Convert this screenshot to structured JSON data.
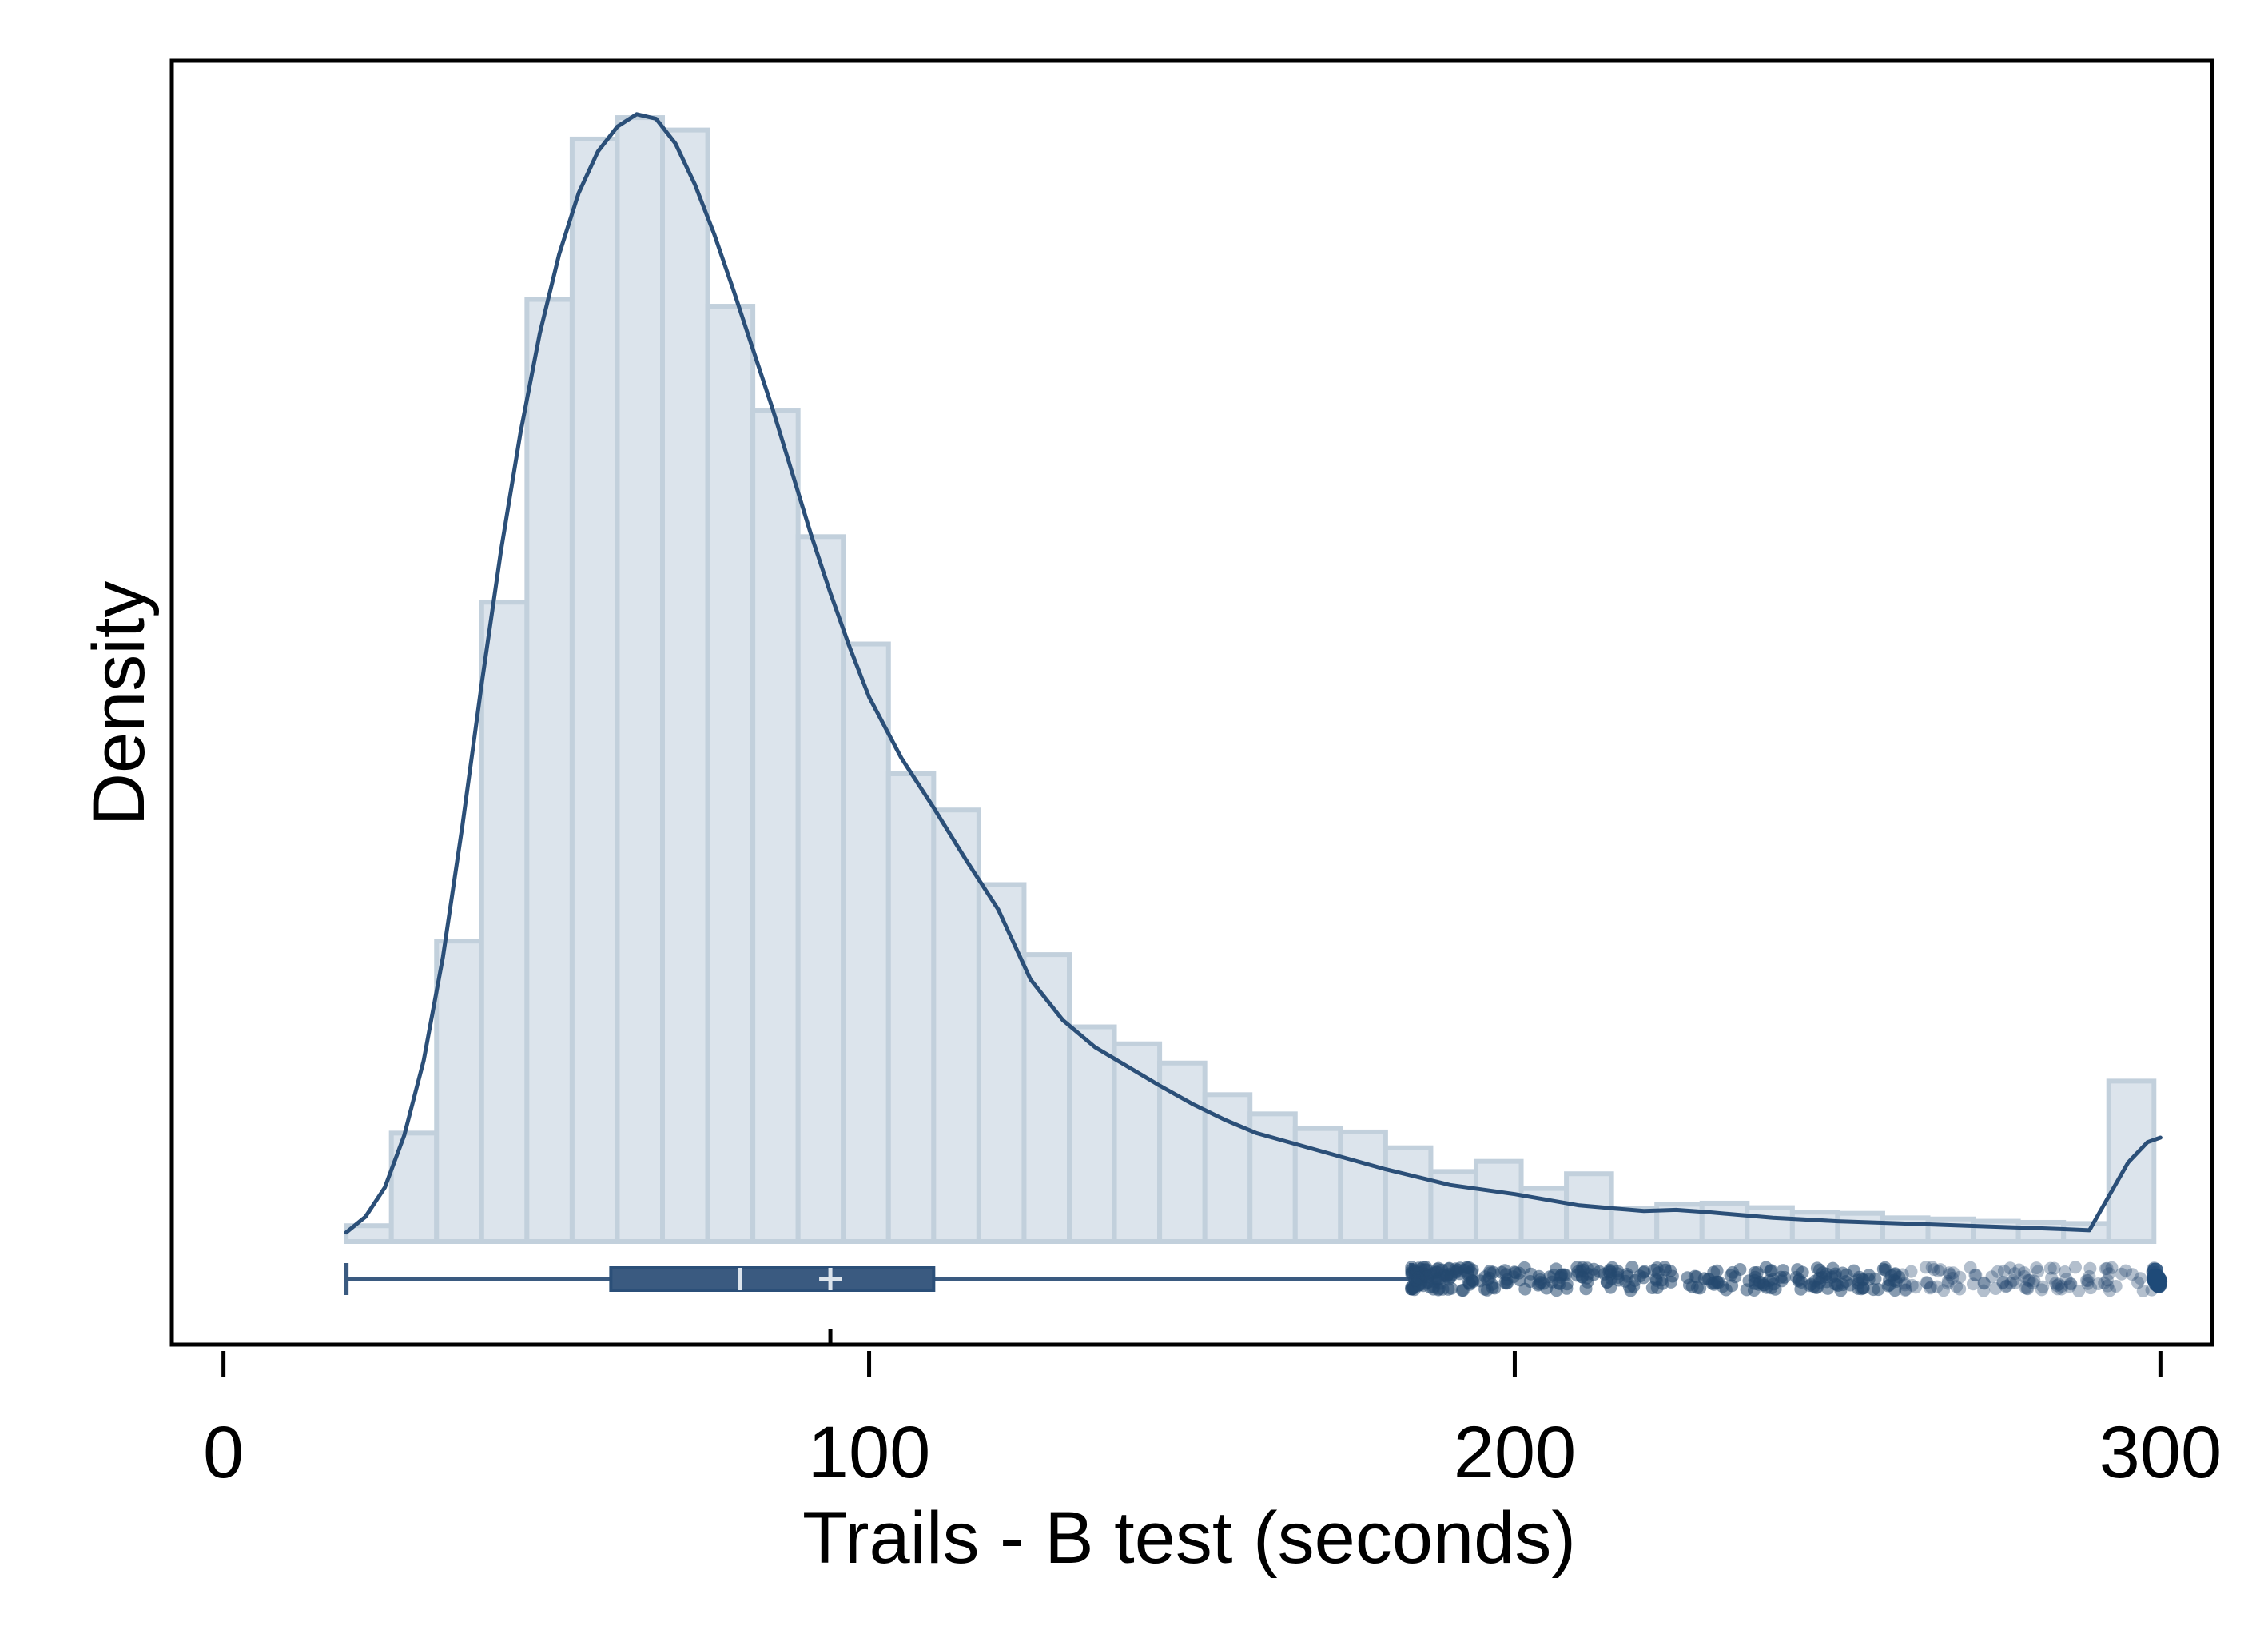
{
  "chart_data": {
    "type": "bar",
    "subtype": "histogram-with-kde-and-boxplot",
    "title": "",
    "xlabel": "Trails - B test (seconds)",
    "ylabel": "Density",
    "xlim": [
      -8,
      308
    ],
    "x_ticks": [
      0,
      100,
      200,
      300
    ],
    "x_tick_labels": [
      "0",
      "100",
      "200",
      "300"
    ],
    "y_ticks_shown": false,
    "grid": false,
    "legend": "none",
    "colors": {
      "bar_fill": "#dce4ec",
      "bar_edge": "#c2d0dc",
      "kde_line": "#2b4f78",
      "boxplot": "#3a5a80",
      "axis": "#000000"
    },
    "histogram": {
      "bin_width": 7,
      "bin_starts": [
        19,
        26,
        33,
        40,
        47,
        54,
        61,
        68,
        75,
        82,
        89,
        96,
        103,
        110,
        117,
        124,
        131,
        138,
        145,
        152,
        159,
        166,
        173,
        180,
        187,
        194,
        201,
        208,
        215,
        222,
        229,
        236,
        243,
        250,
        257,
        264,
        271,
        278,
        285,
        292
      ],
      "relative_density": [
        0.014,
        0.096,
        0.266,
        0.566,
        0.834,
        0.976,
        0.995,
        0.984,
        0.828,
        0.736,
        0.624,
        0.529,
        0.414,
        0.382,
        0.316,
        0.254,
        0.19,
        0.175,
        0.158,
        0.13,
        0.113,
        0.1,
        0.097,
        0.083,
        0.062,
        0.071,
        0.047,
        0.06,
        0.029,
        0.033,
        0.034,
        0.03,
        0.026,
        0.025,
        0.021,
        0.02,
        0.018,
        0.017,
        0.016,
        0.142
      ]
    },
    "kde": {
      "x": [
        19,
        22,
        25,
        28,
        31,
        34,
        37,
        40,
        43,
        46,
        49,
        52,
        55,
        58,
        61,
        64,
        67,
        70,
        73,
        76,
        79,
        82,
        85,
        88,
        91,
        94,
        97,
        100,
        105,
        110,
        115,
        120,
        125,
        130,
        135,
        140,
        145,
        150,
        155,
        160,
        170,
        180,
        190,
        200,
        210,
        220,
        225,
        230,
        240,
        250,
        260,
        270,
        280,
        285,
        289,
        292,
        295,
        298,
        300
      ],
      "relative_density": [
        0.008,
        0.022,
        0.048,
        0.094,
        0.16,
        0.252,
        0.368,
        0.494,
        0.612,
        0.716,
        0.804,
        0.874,
        0.928,
        0.965,
        0.987,
        0.998,
        0.994,
        0.972,
        0.936,
        0.892,
        0.842,
        0.79,
        0.738,
        0.682,
        0.626,
        0.574,
        0.526,
        0.482,
        0.428,
        0.384,
        0.338,
        0.294,
        0.232,
        0.196,
        0.172,
        0.155,
        0.138,
        0.122,
        0.108,
        0.096,
        0.08,
        0.064,
        0.05,
        0.042,
        0.032,
        0.027,
        0.028,
        0.026,
        0.021,
        0.018,
        0.016,
        0.014,
        0.012,
        0.011,
        0.01,
        0.04,
        0.07,
        0.088,
        0.092
      ]
    },
    "boxplot": {
      "whisker_low": 19,
      "q1": 60,
      "median": 80,
      "mean": 94,
      "q3": 110,
      "whisker_high": 184,
      "outliers_range": [
        184,
        300
      ]
    }
  }
}
